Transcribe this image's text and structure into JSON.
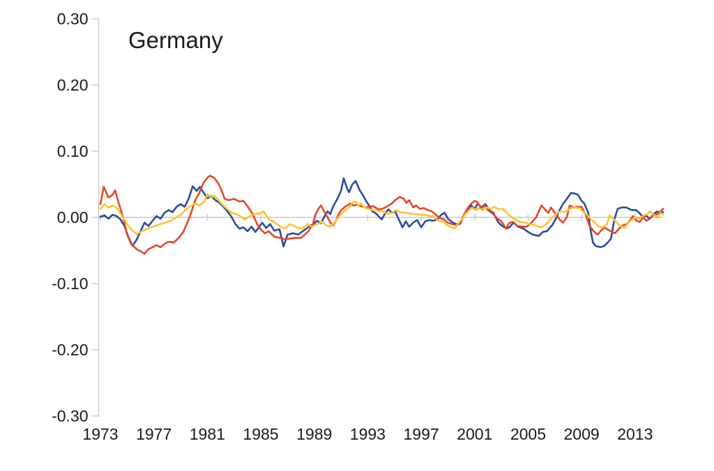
{
  "page": {
    "background": "#FFFFFF"
  },
  "chart_data": {
    "type": "line",
    "title": "Germany",
    "xlabel": "",
    "ylabel": "",
    "xlim": [
      1973,
      2015.3
    ],
    "ylim": [
      -0.3,
      0.3
    ],
    "x_tick_values": [
      1973,
      1977,
      1981,
      1985,
      1989,
      1993,
      1997,
      2001,
      2005,
      2009,
      2013
    ],
    "x_tick_labels": [
      "1973",
      "1977",
      "1981",
      "1985",
      "1989",
      "1993",
      "1997",
      "2001",
      "2005",
      "2009",
      "2013"
    ],
    "y_tick_values": [
      0.3,
      0.2,
      0.1,
      0.0,
      -0.1,
      -0.2,
      -0.3
    ],
    "y_tick_labels": [
      "0.30",
      "0.20",
      "0.10",
      "0.00",
      "-0.10",
      "-0.20",
      "-0.30"
    ],
    "grid": "single horizontal gridline at 0 with small vertical tick marks at labeled years",
    "legend": "none",
    "axis_color": "#c9c9c9",
    "text_color": "#1a1a1a",
    "series": [
      {
        "name": "series 1 (blue)",
        "color": "#2b4c9c",
        "x": [
          1973.0,
          1973.3,
          1973.6,
          1973.9,
          1974.2,
          1974.5,
          1974.8,
          1975.1,
          1975.4,
          1975.7,
          1976.0,
          1976.3,
          1976.6,
          1976.9,
          1977.2,
          1977.5,
          1977.8,
          1978.1,
          1978.4,
          1978.7,
          1979.0,
          1979.3,
          1979.6,
          1979.9,
          1980.2,
          1980.45,
          1980.7,
          1981.0,
          1981.3,
          1981.6,
          1981.9,
          1982.2,
          1982.5,
          1982.8,
          1983.1,
          1983.4,
          1983.7,
          1984.0,
          1984.3,
          1984.6,
          1984.9,
          1985.1,
          1985.4,
          1985.7,
          1986.0,
          1986.4,
          1986.7,
          1987.0,
          1987.4,
          1987.8,
          1988.2,
          1988.6,
          1989.0,
          1989.2,
          1989.5,
          1989.8,
          1990.0,
          1990.2,
          1990.45,
          1990.7,
          1991.0,
          1991.2,
          1991.45,
          1991.6,
          1991.85,
          1992.1,
          1992.4,
          1992.65,
          1992.9,
          1993.1,
          1993.35,
          1993.6,
          1993.85,
          1994.05,
          1994.3,
          1994.55,
          1994.8,
          1995.05,
          1995.35,
          1995.6,
          1995.85,
          1996.1,
          1996.4,
          1996.7,
          1997.0,
          1997.3,
          1997.6,
          1997.9,
          1998.2,
          1998.5,
          1998.75,
          1999.0,
          1999.3,
          1999.6,
          1999.9,
          2000.2,
          2000.5,
          2000.75,
          2001.0,
          2001.25,
          2001.5,
          2001.8,
          2002.1,
          2002.4,
          2002.75,
          2003.0,
          2003.35,
          2003.6,
          2003.9,
          2004.25,
          2004.65,
          2005.0,
          2005.35,
          2005.8,
          2006.1,
          2006.4,
          2006.8,
          2007.1,
          2007.35,
          2007.6,
          2007.9,
          2008.2,
          2008.5,
          2008.75,
          2009.0,
          2009.2,
          2009.5,
          2009.65,
          2009.85,
          2010.05,
          2010.4,
          2010.7,
          2011.0,
          2011.2,
          2011.45,
          2011.7,
          2012.0,
          2012.35,
          2012.75,
          2013.1,
          2013.4,
          2013.6,
          2013.8,
          2014.1,
          2014.4,
          2014.65,
          2014.85,
          2015.1
        ],
        "y": [
          0.001,
          0.003,
          -0.002,
          0.004,
          0.002,
          -0.003,
          -0.013,
          -0.03,
          -0.043,
          -0.034,
          -0.021,
          -0.008,
          -0.013,
          -0.005,
          0.002,
          -0.002,
          0.007,
          0.011,
          0.008,
          0.016,
          0.02,
          0.016,
          0.028,
          0.047,
          0.04,
          0.046,
          0.038,
          0.029,
          0.032,
          0.026,
          0.022,
          0.016,
          0.009,
          0.001,
          -0.01,
          -0.017,
          -0.015,
          -0.021,
          -0.014,
          -0.022,
          -0.014,
          -0.008,
          -0.016,
          -0.01,
          -0.02,
          -0.018,
          -0.044,
          -0.026,
          -0.024,
          -0.026,
          -0.02,
          -0.014,
          -0.009,
          -0.005,
          -0.009,
          0.003,
          0.009,
          0.005,
          0.018,
          0.027,
          0.04,
          0.059,
          0.044,
          0.038,
          0.05,
          0.055,
          0.041,
          0.033,
          0.024,
          0.018,
          0.009,
          0.006,
          0.001,
          -0.003,
          0.006,
          0.012,
          0.007,
          0.009,
          -0.004,
          -0.015,
          -0.006,
          -0.014,
          -0.008,
          -0.004,
          -0.015,
          -0.006,
          -0.004,
          -0.005,
          -0.003,
          0.004,
          0.007,
          -0.002,
          -0.007,
          -0.01,
          -0.01,
          0.002,
          0.011,
          0.018,
          0.013,
          0.021,
          0.015,
          0.02,
          0.011,
          0.007,
          -0.007,
          -0.012,
          -0.017,
          -0.015,
          -0.008,
          -0.014,
          -0.017,
          -0.022,
          -0.026,
          -0.028,
          -0.022,
          -0.021,
          -0.012,
          -0.001,
          0.011,
          0.02,
          0.028,
          0.037,
          0.036,
          0.034,
          0.025,
          0.021,
          0.007,
          -0.017,
          -0.038,
          -0.043,
          -0.045,
          -0.043,
          -0.037,
          -0.032,
          -0.003,
          0.013,
          0.015,
          0.015,
          0.011,
          0.011,
          0.005,
          0.0,
          0.003,
          -0.002,
          0.005,
          0.009,
          0.006,
          0.008
        ]
      },
      {
        "name": "series 2 (red)",
        "color": "#e2482a",
        "x": [
          1973.0,
          1973.25,
          1973.6,
          1973.9,
          1974.1,
          1974.4,
          1974.7,
          1975.0,
          1975.3,
          1975.7,
          1976.0,
          1976.3,
          1976.6,
          1976.9,
          1977.2,
          1977.5,
          1977.8,
          1978.1,
          1978.5,
          1978.9,
          1979.2,
          1979.5,
          1979.7,
          1979.9,
          1980.1,
          1980.4,
          1980.7,
          1981.0,
          1981.2,
          1981.5,
          1981.8,
          1982.0,
          1982.3,
          1982.6,
          1983.0,
          1983.4,
          1983.7,
          1984.0,
          1984.4,
          1984.7,
          1985.0,
          1985.3,
          1985.6,
          1986.0,
          1986.4,
          1986.8,
          1987.2,
          1987.6,
          1988.0,
          1988.3,
          1988.6,
          1988.9,
          1989.1,
          1989.3,
          1989.5,
          1989.8,
          1990.0,
          1990.2,
          1990.4,
          1990.6,
          1990.8,
          1991.0,
          1991.3,
          1991.7,
          1991.9,
          1992.2,
          1992.5,
          1992.8,
          1993.1,
          1993.4,
          1993.8,
          1994.1,
          1994.4,
          1994.8,
          1995.1,
          1995.4,
          1995.7,
          1995.9,
          1996.1,
          1996.4,
          1996.6,
          1996.9,
          1997.2,
          1997.5,
          1997.8,
          1998.1,
          1998.4,
          1998.7,
          1999.0,
          1999.3,
          1999.7,
          2000.0,
          2000.2,
          2000.45,
          2000.7,
          2001.0,
          2001.2,
          2001.5,
          2001.75,
          2002.0,
          2002.4,
          2002.7,
          2003.0,
          2003.35,
          2003.6,
          2003.9,
          2004.2,
          2004.6,
          2004.9,
          2005.3,
          2005.6,
          2005.8,
          2006.0,
          2006.3,
          2006.5,
          2006.7,
          2007.1,
          2007.35,
          2007.6,
          2007.9,
          2008.1,
          2008.4,
          2008.7,
          2009.0,
          2009.3,
          2009.6,
          2009.9,
          2010.2,
          2010.5,
          2010.7,
          2011.0,
          2011.3,
          2011.5,
          2011.8,
          2012.1,
          2012.4,
          2012.6,
          2012.85,
          2013.1,
          2013.35,
          2013.6,
          2013.85,
          2014.1,
          2014.4,
          2014.65,
          2014.9,
          2015.1
        ],
        "y": [
          0.02,
          0.046,
          0.03,
          0.034,
          0.041,
          0.02,
          0.0,
          -0.026,
          -0.04,
          -0.048,
          -0.051,
          -0.055,
          -0.048,
          -0.045,
          -0.042,
          -0.045,
          -0.04,
          -0.037,
          -0.038,
          -0.03,
          -0.022,
          -0.008,
          0.002,
          0.014,
          0.026,
          0.037,
          0.052,
          0.06,
          0.063,
          0.06,
          0.052,
          0.044,
          0.028,
          0.026,
          0.028,
          0.024,
          0.025,
          0.017,
          0.005,
          -0.009,
          -0.018,
          -0.024,
          -0.021,
          -0.029,
          -0.031,
          -0.033,
          -0.032,
          -0.031,
          -0.031,
          -0.026,
          -0.02,
          -0.01,
          0.004,
          0.013,
          0.018,
          0.007,
          0.0,
          -0.008,
          -0.012,
          -0.006,
          0.004,
          0.011,
          0.016,
          0.021,
          0.018,
          0.019,
          0.017,
          0.015,
          0.016,
          0.017,
          0.012,
          0.013,
          0.016,
          0.021,
          0.027,
          0.031,
          0.028,
          0.022,
          0.026,
          0.015,
          0.018,
          0.013,
          0.014,
          0.011,
          0.009,
          0.004,
          -0.001,
          -0.003,
          -0.008,
          -0.01,
          -0.012,
          -0.005,
          0.004,
          0.013,
          0.02,
          0.025,
          0.023,
          0.013,
          0.018,
          0.011,
          0.005,
          -0.002,
          -0.006,
          -0.017,
          -0.008,
          -0.007,
          -0.013,
          -0.014,
          -0.014,
          -0.007,
          0.0,
          0.009,
          0.018,
          0.011,
          0.007,
          0.015,
          0.004,
          -0.003,
          -0.008,
          0.0,
          0.018,
          0.015,
          0.016,
          0.016,
          0.004,
          -0.013,
          -0.021,
          -0.026,
          -0.019,
          -0.015,
          -0.019,
          -0.022,
          -0.024,
          -0.017,
          -0.012,
          -0.01,
          -0.005,
          0.002,
          -0.005,
          -0.007,
          0.0,
          -0.005,
          -0.002,
          0.004,
          0.005,
          0.009,
          0.013
        ]
      },
      {
        "name": "series 3 (yellow)",
        "color": "#fcc32b",
        "x": [
          1973.0,
          1973.3,
          1973.6,
          1973.9,
          1974.2,
          1974.5,
          1974.8,
          1975.1,
          1975.4,
          1975.7,
          1976.0,
          1976.3,
          1976.7,
          1977.1,
          1977.5,
          1977.9,
          1978.3,
          1978.7,
          1979.0,
          1979.3,
          1979.6,
          1979.9,
          1980.1,
          1980.4,
          1980.6,
          1980.8,
          1981.0,
          1981.3,
          1981.5,
          1981.8,
          1982.0,
          1982.3,
          1982.8,
          1983.3,
          1983.8,
          1984.2,
          1984.5,
          1984.9,
          1985.2,
          1985.6,
          1986.0,
          1986.4,
          1986.8,
          1987.2,
          1987.7,
          1988.1,
          1988.5,
          1988.8,
          1989.2,
          1989.6,
          1989.9,
          1990.2,
          1990.5,
          1990.8,
          1991.0,
          1991.3,
          1991.6,
          1991.9,
          1992.1,
          1992.3,
          1992.5,
          1992.7,
          1993.0,
          1993.4,
          1993.7,
          1994.1,
          1994.5,
          1994.8,
          1995.1,
          1995.4,
          1995.8,
          1996.1,
          1996.5,
          1996.9,
          1997.3,
          1997.7,
          1998.0,
          1998.3,
          1998.7,
          1999.0,
          1999.3,
          1999.5,
          1999.8,
          2000.1,
          2000.3,
          2000.6,
          2000.8,
          2001.1,
          2001.3,
          2001.6,
          2001.9,
          2002.2,
          2002.5,
          2002.8,
          2003.1,
          2003.5,
          2003.8,
          2004.1,
          2004.4,
          2004.8,
          2005.1,
          2005.5,
          2005.9,
          2006.2,
          2006.5,
          2006.8,
          2007.1,
          2007.4,
          2007.7,
          2008.0,
          2008.2,
          2008.5,
          2008.8,
          2009.1,
          2009.4,
          2009.7,
          2010.0,
          2010.3,
          2010.6,
          2010.9,
          2011.1,
          2011.4,
          2011.6,
          2011.9,
          2012.2,
          2012.5,
          2012.8,
          2013.0,
          2013.3,
          2013.6,
          2013.9,
          2014.1,
          2014.4,
          2014.7,
          2014.9,
          2015.1
        ],
        "y": [
          0.013,
          0.02,
          0.015,
          0.018,
          0.015,
          0.006,
          -0.004,
          -0.013,
          -0.02,
          -0.025,
          -0.022,
          -0.019,
          -0.016,
          -0.013,
          -0.01,
          -0.008,
          -0.005,
          0.0,
          0.004,
          0.01,
          0.015,
          0.019,
          0.021,
          0.018,
          0.021,
          0.025,
          0.035,
          0.03,
          0.033,
          0.027,
          0.022,
          0.016,
          0.007,
          0.004,
          -0.003,
          0.002,
          0.005,
          0.006,
          0.009,
          -0.003,
          -0.007,
          -0.013,
          -0.017,
          -0.01,
          -0.015,
          -0.017,
          -0.01,
          -0.014,
          -0.01,
          -0.007,
          -0.012,
          -0.014,
          -0.008,
          0.0,
          0.005,
          0.011,
          0.015,
          0.023,
          0.024,
          0.018,
          0.021,
          0.016,
          0.013,
          0.011,
          0.01,
          0.009,
          0.005,
          0.007,
          0.011,
          0.008,
          0.007,
          0.006,
          0.005,
          0.004,
          0.004,
          0.002,
          0.0,
          -0.005,
          -0.007,
          -0.013,
          -0.015,
          -0.017,
          -0.008,
          -0.002,
          0.005,
          0.011,
          0.015,
          0.011,
          0.014,
          0.011,
          0.015,
          0.013,
          0.016,
          0.012,
          0.013,
          0.005,
          0.0,
          -0.004,
          -0.007,
          -0.008,
          -0.01,
          -0.012,
          -0.015,
          -0.013,
          -0.007,
          0.0,
          0.005,
          0.009,
          0.008,
          0.011,
          0.014,
          0.015,
          0.014,
          0.009,
          0.004,
          -0.003,
          -0.008,
          -0.014,
          -0.015,
          -0.01,
          0.003,
          -0.003,
          -0.007,
          -0.013,
          -0.016,
          -0.008,
          -0.003,
          0.0,
          -0.002,
          0.002,
          0.005,
          0.009,
          0.004,
          0.0,
          0.007,
          0.004
        ]
      }
    ]
  }
}
